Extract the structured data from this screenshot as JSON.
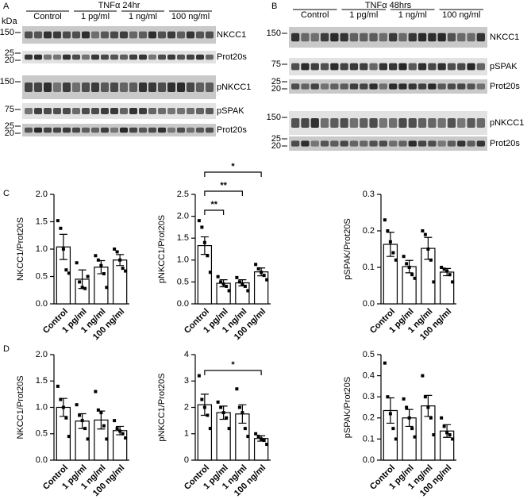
{
  "row_panels": [
    "C",
    "D"
  ],
  "blots": [
    {
      "panel": "A",
      "title": "TNFα 24hr",
      "unit": "kDa",
      "groups": [
        "Control",
        "1 pg/ml",
        "1 ng/ml",
        "100 ng/ml"
      ],
      "rows": [
        {
          "label": "NKCC1",
          "markers": [
            "150"
          ]
        },
        {
          "label": "Prot20s",
          "markers": [
            "25",
            "20"
          ]
        },
        {
          "label": "pNKCC1",
          "markers": [
            "150"
          ]
        },
        {
          "label": "pSPAK",
          "markers": [
            "75"
          ]
        },
        {
          "label": "Prot20s",
          "markers": [
            "25",
            "20"
          ]
        }
      ]
    },
    {
      "panel": "B",
      "title": "TNFα 48hrs",
      "groups": [
        "Control",
        "1 pg/ml",
        "1 ng/ml",
        "100 ng/ml"
      ],
      "rows": [
        {
          "label": "NKCC1",
          "markers": [
            "150"
          ]
        },
        {
          "label": "pSPAK",
          "markers": [
            "75"
          ]
        },
        {
          "label": "Prot20s",
          "markers": [
            "25",
            "20"
          ]
        },
        {
          "label": "pNKCC1",
          "markers": [
            "150"
          ]
        },
        {
          "label": "Prot20s",
          "markers": [
            "25",
            "20"
          ]
        }
      ]
    }
  ],
  "chart_data": [
    {
      "type": "bar",
      "ylabel": "NKCC1/Prot20S",
      "categories": [
        "Control",
        "1 pg/ml",
        "1 ng/ml",
        "100 ng/ml"
      ],
      "values": [
        1.04,
        0.45,
        0.67,
        0.8
      ],
      "errors": [
        0.23,
        0.17,
        0.12,
        0.1
      ],
      "points": [
        [
          1.52,
          1.38,
          1.0,
          0.62,
          0.56
        ],
        [
          0.75,
          0.4,
          0.3,
          0.28,
          0.5
        ],
        [
          0.88,
          0.8,
          0.7,
          0.55,
          0.3
        ],
        [
          1.0,
          0.95,
          0.8,
          0.65,
          0.6
        ]
      ],
      "ylim": [
        0,
        2
      ],
      "yticks": [
        {
          "value": 0,
          "label": "0.0"
        },
        0.5,
        {
          "value": 1,
          "label": "1.0"
        },
        1.5,
        {
          "value": 2,
          "label": "2.0"
        }
      ],
      "color": "#ffffff",
      "comparisons": []
    },
    {
      "type": "bar",
      "ylabel": "pNKCC1/Prot20S",
      "categories": [
        "Control",
        "1 pg/ml",
        "1 ng/ml",
        "100 ng/ml"
      ],
      "values": [
        1.33,
        0.47,
        0.48,
        0.73
      ],
      "errors": [
        0.2,
        0.08,
        0.07,
        0.09
      ],
      "points": [
        [
          1.9,
          1.75,
          1.4,
          1.1,
          0.72
        ],
        [
          0.62,
          0.5,
          0.45,
          0.4,
          0.3
        ],
        [
          0.6,
          0.5,
          0.45,
          0.4,
          0.3
        ],
        [
          0.9,
          0.8,
          0.72,
          0.65,
          0.55
        ]
      ],
      "ylim": [
        0,
        2.5
      ],
      "yticks": [
        {
          "value": 0,
          "label": "0.0"
        },
        0.5,
        {
          "value": 1,
          "label": "1.0"
        },
        1.5,
        {
          "value": 2,
          "label": "2.0"
        },
        2.5
      ],
      "color": "#ffffff",
      "comparisons": [
        {
          "label": "**",
          "categories": [
            "Control",
            "1 pg/ml"
          ]
        },
        {
          "label": "**",
          "categories": [
            "Control",
            "1 ng/ml"
          ]
        },
        {
          "label": "*",
          "categories": [
            "Control",
            "100 ng/ml"
          ]
        }
      ]
    },
    {
      "type": "bar",
      "ylabel": "pSPAK/Prot20S",
      "categories": [
        "Control",
        "1 pg/ml",
        "1 ng/ml",
        "100 ng/ml"
      ],
      "values": [
        0.163,
        0.102,
        0.152,
        0.087
      ],
      "errors": [
        0.033,
        0.017,
        0.03,
        0.01
      ],
      "points": [
        [
          0.23,
          0.2,
          0.17,
          0.14,
          0.12
        ],
        [
          0.13,
          0.11,
          0.1,
          0.08,
          0.07
        ],
        [
          0.2,
          0.19,
          0.15,
          0.12,
          0.06
        ],
        [
          0.1,
          0.095,
          0.09,
          0.08,
          0.06
        ]
      ],
      "ylim": [
        0,
        0.3
      ],
      "yticks": [
        {
          "value": 0,
          "label": "0.0"
        },
        0.1,
        0.2,
        0.3
      ],
      "color": "#ffffff",
      "comparisons": []
    },
    {
      "type": "bar",
      "ylabel": "NKCC1/Prot20S",
      "categories": [
        "Control",
        "1 pg/ml",
        "1 ng/ml",
        "100 ng/ml"
      ],
      "values": [
        1.0,
        0.74,
        0.76,
        0.56
      ],
      "errors": [
        0.17,
        0.14,
        0.17,
        0.08
      ],
      "points": [
        [
          1.4,
          1.15,
          1.0,
          0.8,
          0.45
        ],
        [
          1.05,
          0.85,
          0.75,
          0.6,
          0.4
        ],
        [
          1.3,
          0.95,
          0.9,
          0.65,
          0.4
        ],
        [
          0.75,
          0.6,
          0.55,
          0.5,
          0.42
        ]
      ],
      "ylim": [
        0,
        2
      ],
      "yticks": [
        {
          "value": 0,
          "label": "0.0"
        },
        0.5,
        {
          "value": 1,
          "label": "1.0"
        },
        1.5,
        {
          "value": 2,
          "label": "2.0"
        }
      ],
      "color": "#ffffff",
      "comparisons": []
    },
    {
      "type": "bar",
      "ylabel": "pNKCC1/Prot20S",
      "categories": [
        "Control",
        "1 pg/ml",
        "1 ng/ml",
        "100 ng/ml"
      ],
      "values": [
        2.1,
        1.8,
        1.75,
        0.82
      ],
      "errors": [
        0.4,
        0.25,
        0.35,
        0.1
      ],
      "points": [
        [
          3.2,
          2.3,
          2.0,
          1.7,
          1.2
        ],
        [
          2.2,
          2.0,
          1.8,
          1.6,
          1.2
        ],
        [
          2.7,
          2.0,
          1.8,
          1.2,
          0.9
        ],
        [
          1.0,
          0.9,
          0.8,
          0.75,
          0.6
        ]
      ],
      "ylim": [
        0,
        4
      ],
      "yticks": [
        0,
        1,
        2,
        3,
        4
      ],
      "color": "#ffffff",
      "comparisons": [
        {
          "label": "*",
          "categories": [
            "Control",
            "100 ng/ml"
          ]
        }
      ]
    },
    {
      "type": "bar",
      "ylabel": "pSPAK/Prot20S",
      "categories": [
        "Control",
        "1 pg/ml",
        "1 ng/ml",
        "100 ng/ml"
      ],
      "values": [
        0.235,
        0.2,
        0.257,
        0.138
      ],
      "errors": [
        0.06,
        0.04,
        0.05,
        0.03
      ],
      "points": [
        [
          0.46,
          0.3,
          0.22,
          0.15,
          0.1
        ],
        [
          0.29,
          0.25,
          0.2,
          0.15,
          0.11
        ],
        [
          0.4,
          0.3,
          0.25,
          0.2,
          0.12
        ],
        [
          0.2,
          0.16,
          0.13,
          0.12,
          0.1
        ]
      ],
      "ylim": [
        0,
        0.5
      ],
      "yticks": [
        {
          "value": 0,
          "label": "0.0"
        },
        0.1,
        0.2,
        0.3,
        0.4,
        0.5
      ],
      "color": "#ffffff",
      "comparisons": []
    }
  ]
}
